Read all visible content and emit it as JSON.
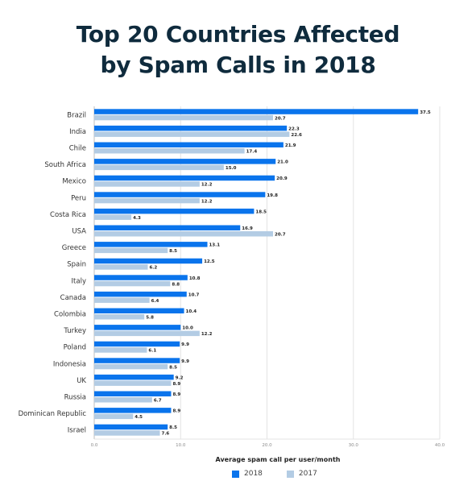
{
  "chart_data": {
    "type": "bar",
    "orientation": "horizontal",
    "title": [
      "Top 20 Countries Affected",
      "by Spam Calls in 2018"
    ],
    "xlabel": "Average spam call per user/month",
    "xlim": [
      0,
      40
    ],
    "xticks": [
      "0.0",
      "10.0",
      "20.0",
      "30.0",
      "40.0"
    ],
    "grid": true,
    "legend_position": "bottom",
    "categories": [
      "Brazil",
      "India",
      "Chile",
      "South Africa",
      "Mexico",
      "Peru",
      "Costa Rica",
      "USA",
      "Greece",
      "Spain",
      "Italy",
      "Canada",
      "Colombia",
      "Turkey",
      "Poland",
      "Indonesia",
      "UK",
      "Russia",
      "Dominican Republic",
      "Israel"
    ],
    "series": [
      {
        "name": "2018",
        "color": "#0a74ec",
        "values": [
          37.5,
          22.3,
          21.9,
          21.0,
          20.9,
          19.8,
          18.5,
          16.9,
          13.1,
          12.5,
          10.8,
          10.7,
          10.4,
          10.0,
          9.9,
          9.9,
          9.2,
          8.9,
          8.9,
          8.5
        ],
        "labels": [
          "37.5",
          "22.3",
          "21.9",
          "21.0",
          "20.9",
          "19.8",
          "18.5",
          "16.9",
          "13.1",
          "12.5",
          "10.8",
          "10.7",
          "10.4",
          "10.0",
          "9.9",
          "9.9",
          "9.2",
          "8.9",
          "8.9",
          "8.5"
        ]
      },
      {
        "name": "2017",
        "color": "#b3cce4",
        "values": [
          20.7,
          22.6,
          17.4,
          15.0,
          12.2,
          12.2,
          4.3,
          20.7,
          8.5,
          6.2,
          8.8,
          6.4,
          5.8,
          12.2,
          6.1,
          8.5,
          8.9,
          6.7,
          4.5,
          7.6
        ],
        "labels": [
          "20.7",
          "22.6",
          "17.4",
          "15.0",
          "12.2",
          "12.2",
          "4.3",
          "20.7",
          "8.5",
          "6.2",
          "8.8",
          "6.4",
          "5.8",
          "12.2",
          "6.1",
          "8.5",
          "8.9",
          "6.7",
          "4.5",
          "7.6"
        ]
      }
    ]
  }
}
